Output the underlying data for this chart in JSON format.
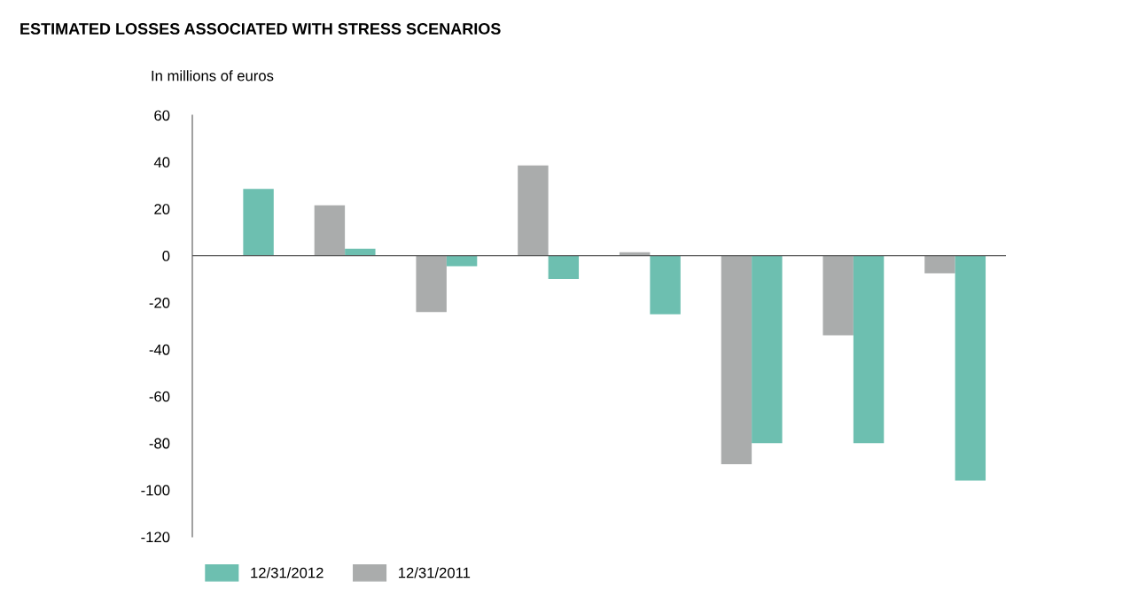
{
  "chart_data": {
    "type": "bar",
    "title": "ESTIMATED LOSSES ASSOCIATED WITH STRESS SCENARIOS",
    "ylabel": "In millions of euros",
    "categories": [
      null,
      null,
      null,
      null,
      null,
      null,
      null,
      null
    ],
    "series": [
      {
        "name": "12/31/2011",
        "color": "#aaacac",
        "values": [
          null,
          21.5,
          -24,
          38.5,
          1.5,
          -89,
          -34,
          -7.5
        ]
      },
      {
        "name": "12/31/2012",
        "color": "#6dbfb0",
        "values": [
          28.5,
          3,
          -4.5,
          -10,
          -25,
          -80,
          -80,
          -96
        ]
      }
    ],
    "ylim": [
      -120,
      60
    ],
    "yticks": [
      -120,
      -100,
      -80,
      -60,
      -40,
      -20,
      0,
      20,
      40,
      60
    ],
    "ref_lines": [
      {
        "axis": "y",
        "value": 0,
        "color": "#555555"
      }
    ],
    "grid": false,
    "legend": "bottom left"
  }
}
